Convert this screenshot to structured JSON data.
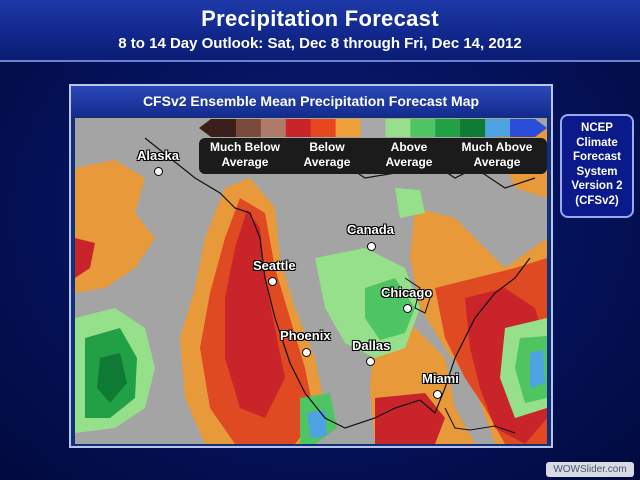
{
  "title": "Precipitation Forecast",
  "subtitle": "8 to 14 Day Outlook: Sat, Dec 8 through Fri, Dec 14, 2012",
  "map": {
    "header": "CFSv2 Ensemble Mean Precipitation Forecast Map",
    "legend": {
      "colors": [
        "#3a1f1a",
        "#7a4a3c",
        "#b07a6a",
        "#c8242a",
        "#e8461e",
        "#f0a03a",
        "#a8a8a8",
        "#96e08c",
        "#4ec462",
        "#22a046",
        "#0e7a34",
        "#4ea2e2",
        "#2a4ed8"
      ],
      "labels": [
        {
          "line1": "Much Below",
          "line2": "Average"
        },
        {
          "line1": "Below",
          "line2": "Average"
        },
        {
          "line1": "Above",
          "line2": "Average"
        },
        {
          "line1": "Much Above",
          "line2": "Average"
        }
      ]
    },
    "cities": [
      {
        "name": "Alaska"
      },
      {
        "name": "Canada"
      },
      {
        "name": "Seattle"
      },
      {
        "name": "Chicago"
      },
      {
        "name": "Phoenix"
      },
      {
        "name": "Dallas"
      },
      {
        "name": "Miami"
      }
    ]
  },
  "ncep_box": [
    "NCEP",
    "Climate",
    "Forecast",
    "System",
    "Version 2",
    "(CFSv2)"
  ],
  "watermark": "WOWSlider.com"
}
